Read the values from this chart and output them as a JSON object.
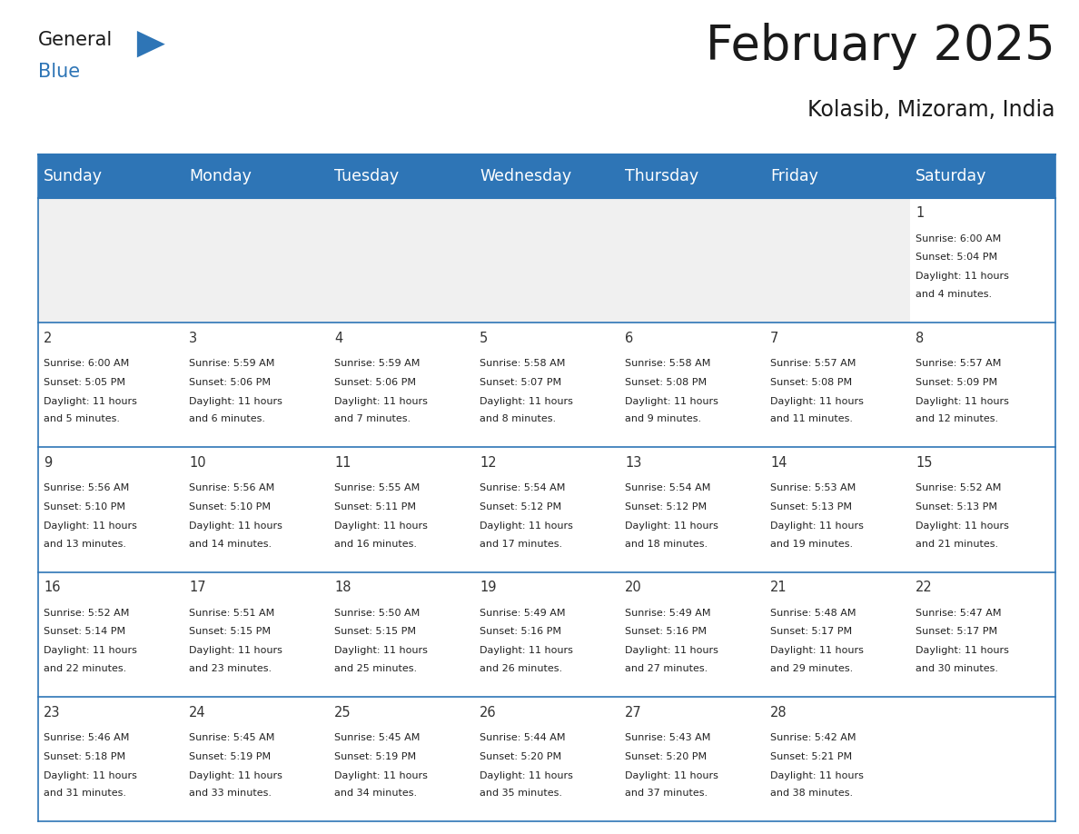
{
  "title": "February 2025",
  "subtitle": "Kolasib, Mizoram, India",
  "header_bg": "#2E75B6",
  "header_text_color": "#FFFFFF",
  "header_font_size": 12.5,
  "title_font_size": 38,
  "subtitle_font_size": 17,
  "day_names": [
    "Sunday",
    "Monday",
    "Tuesday",
    "Wednesday",
    "Thursday",
    "Friday",
    "Saturday"
  ],
  "cell_text_color": "#222222",
  "day_number_color": "#333333",
  "line_color": "#2E75B6",
  "bg_color": "#FFFFFF",
  "empty_row_bg": "#F0F0F0",
  "days": [
    {
      "date": 1,
      "col": 6,
      "row": 0,
      "sunrise": "6:00 AM",
      "sunset": "5:04 PM",
      "daylight": "11 hours and 4 minutes."
    },
    {
      "date": 2,
      "col": 0,
      "row": 1,
      "sunrise": "6:00 AM",
      "sunset": "5:05 PM",
      "daylight": "11 hours and 5 minutes."
    },
    {
      "date": 3,
      "col": 1,
      "row": 1,
      "sunrise": "5:59 AM",
      "sunset": "5:06 PM",
      "daylight": "11 hours and 6 minutes."
    },
    {
      "date": 4,
      "col": 2,
      "row": 1,
      "sunrise": "5:59 AM",
      "sunset": "5:06 PM",
      "daylight": "11 hours and 7 minutes."
    },
    {
      "date": 5,
      "col": 3,
      "row": 1,
      "sunrise": "5:58 AM",
      "sunset": "5:07 PM",
      "daylight": "11 hours and 8 minutes."
    },
    {
      "date": 6,
      "col": 4,
      "row": 1,
      "sunrise": "5:58 AM",
      "sunset": "5:08 PM",
      "daylight": "11 hours and 9 minutes."
    },
    {
      "date": 7,
      "col": 5,
      "row": 1,
      "sunrise": "5:57 AM",
      "sunset": "5:08 PM",
      "daylight": "11 hours and 11 minutes."
    },
    {
      "date": 8,
      "col": 6,
      "row": 1,
      "sunrise": "5:57 AM",
      "sunset": "5:09 PM",
      "daylight": "11 hours and 12 minutes."
    },
    {
      "date": 9,
      "col": 0,
      "row": 2,
      "sunrise": "5:56 AM",
      "sunset": "5:10 PM",
      "daylight": "11 hours and 13 minutes."
    },
    {
      "date": 10,
      "col": 1,
      "row": 2,
      "sunrise": "5:56 AM",
      "sunset": "5:10 PM",
      "daylight": "11 hours and 14 minutes."
    },
    {
      "date": 11,
      "col": 2,
      "row": 2,
      "sunrise": "5:55 AM",
      "sunset": "5:11 PM",
      "daylight": "11 hours and 16 minutes."
    },
    {
      "date": 12,
      "col": 3,
      "row": 2,
      "sunrise": "5:54 AM",
      "sunset": "5:12 PM",
      "daylight": "11 hours and 17 minutes."
    },
    {
      "date": 13,
      "col": 4,
      "row": 2,
      "sunrise": "5:54 AM",
      "sunset": "5:12 PM",
      "daylight": "11 hours and 18 minutes."
    },
    {
      "date": 14,
      "col": 5,
      "row": 2,
      "sunrise": "5:53 AM",
      "sunset": "5:13 PM",
      "daylight": "11 hours and 19 minutes."
    },
    {
      "date": 15,
      "col": 6,
      "row": 2,
      "sunrise": "5:52 AM",
      "sunset": "5:13 PM",
      "daylight": "11 hours and 21 minutes."
    },
    {
      "date": 16,
      "col": 0,
      "row": 3,
      "sunrise": "5:52 AM",
      "sunset": "5:14 PM",
      "daylight": "11 hours and 22 minutes."
    },
    {
      "date": 17,
      "col": 1,
      "row": 3,
      "sunrise": "5:51 AM",
      "sunset": "5:15 PM",
      "daylight": "11 hours and 23 minutes."
    },
    {
      "date": 18,
      "col": 2,
      "row": 3,
      "sunrise": "5:50 AM",
      "sunset": "5:15 PM",
      "daylight": "11 hours and 25 minutes."
    },
    {
      "date": 19,
      "col": 3,
      "row": 3,
      "sunrise": "5:49 AM",
      "sunset": "5:16 PM",
      "daylight": "11 hours and 26 minutes."
    },
    {
      "date": 20,
      "col": 4,
      "row": 3,
      "sunrise": "5:49 AM",
      "sunset": "5:16 PM",
      "daylight": "11 hours and 27 minutes."
    },
    {
      "date": 21,
      "col": 5,
      "row": 3,
      "sunrise": "5:48 AM",
      "sunset": "5:17 PM",
      "daylight": "11 hours and 29 minutes."
    },
    {
      "date": 22,
      "col": 6,
      "row": 3,
      "sunrise": "5:47 AM",
      "sunset": "5:17 PM",
      "daylight": "11 hours and 30 minutes."
    },
    {
      "date": 23,
      "col": 0,
      "row": 4,
      "sunrise": "5:46 AM",
      "sunset": "5:18 PM",
      "daylight": "11 hours and 31 minutes."
    },
    {
      "date": 24,
      "col": 1,
      "row": 4,
      "sunrise": "5:45 AM",
      "sunset": "5:19 PM",
      "daylight": "11 hours and 33 minutes."
    },
    {
      "date": 25,
      "col": 2,
      "row": 4,
      "sunrise": "5:45 AM",
      "sunset": "5:19 PM",
      "daylight": "11 hours and 34 minutes."
    },
    {
      "date": 26,
      "col": 3,
      "row": 4,
      "sunrise": "5:44 AM",
      "sunset": "5:20 PM",
      "daylight": "11 hours and 35 minutes."
    },
    {
      "date": 27,
      "col": 4,
      "row": 4,
      "sunrise": "5:43 AM",
      "sunset": "5:20 PM",
      "daylight": "11 hours and 37 minutes."
    },
    {
      "date": 28,
      "col": 5,
      "row": 4,
      "sunrise": "5:42 AM",
      "sunset": "5:21 PM",
      "daylight": "11 hours and 38 minutes."
    }
  ]
}
